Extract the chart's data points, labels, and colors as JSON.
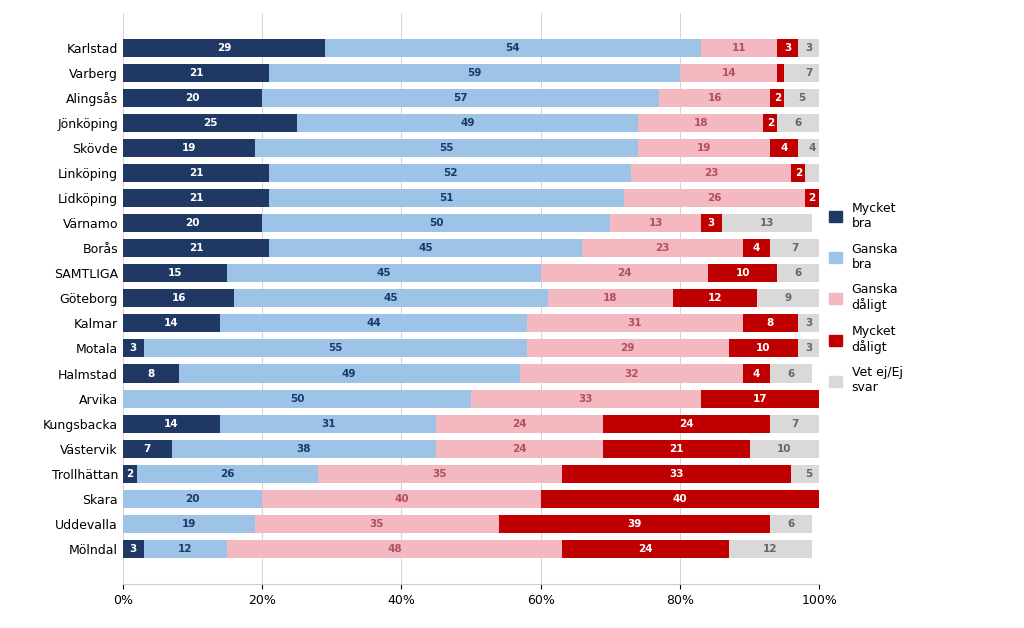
{
  "categories": [
    "Karlstad",
    "Varberg",
    "Alingsås",
    "Jönköping",
    "Skövde",
    "Linköping",
    "Lidköping",
    "Värnamo",
    "Borås",
    "SAMTLIGA",
    "Göteborg",
    "Kalmar",
    "Motala",
    "Halmstad",
    "Arvika",
    "Kungsbacka",
    "Västervik",
    "Trollhättan",
    "Skara",
    "Uddevalla",
    "Mölndal"
  ],
  "mycket_bra": [
    29,
    21,
    20,
    25,
    19,
    21,
    21,
    20,
    21,
    15,
    16,
    14,
    3,
    8,
    0,
    14,
    7,
    2,
    0,
    0,
    3
  ],
  "ganska_bra": [
    54,
    59,
    57,
    49,
    55,
    52,
    51,
    50,
    45,
    45,
    45,
    44,
    55,
    49,
    50,
    31,
    38,
    26,
    20,
    19,
    12
  ],
  "ganska_daligt": [
    11,
    14,
    16,
    18,
    19,
    23,
    26,
    13,
    23,
    24,
    18,
    31,
    29,
    32,
    33,
    24,
    24,
    35,
    40,
    35,
    48
  ],
  "mycket_daligt": [
    3,
    1,
    2,
    2,
    4,
    2,
    2,
    3,
    4,
    10,
    12,
    8,
    10,
    4,
    17,
    24,
    21,
    33,
    40,
    39,
    24
  ],
  "vet_ej": [
    3,
    7,
    5,
    6,
    4,
    2,
    2,
    13,
    7,
    6,
    9,
    3,
    3,
    6,
    0,
    7,
    10,
    5,
    0,
    6,
    12
  ],
  "color_mycket_bra": "#1f3864",
  "color_ganska_bra": "#9dc3e6",
  "color_ganska_daligt": "#f4b8c1",
  "color_mycket_daligt": "#c00000",
  "color_vet_ej": "#d9d9d9",
  "legend_labels": [
    "Mycket\nbra",
    "Ganska\nbra",
    "Ganska\ndåligt",
    "Mycket\ndåligt",
    "Vet ej/Ej\nsvar"
  ],
  "figsize": [
    10.24,
    6.28
  ],
  "dpi": 100
}
